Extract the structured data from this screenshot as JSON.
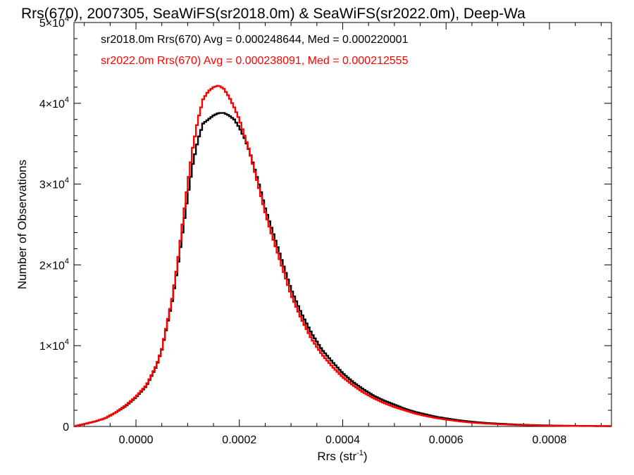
{
  "chart_data": {
    "type": "line",
    "title": "Rrs(670), 2007305, SeaWiFS(sr2018.0m) & SeaWiFS(sr2022.0m), Deep-Wa",
    "xlabel": "Rrs (str",
    "xlabel_sup": "-1",
    "xlabel_end": ")",
    "ylabel": "Number of Observations",
    "xlim": [
      -0.00012,
      0.00092
    ],
    "ylim": [
      0,
      50000
    ],
    "x_ticks": [
      {
        "value": 0.0,
        "label": "0.0000"
      },
      {
        "value": 0.0002,
        "label": "0.0002"
      },
      {
        "value": 0.0004,
        "label": "0.0004"
      },
      {
        "value": 0.0006,
        "label": "0.0006"
      },
      {
        "value": 0.0008,
        "label": "0.0008"
      }
    ],
    "y_ticks": [
      {
        "value": 0,
        "mant": "0",
        "sup": ""
      },
      {
        "value": 10000,
        "mant": "1×10",
        "sup": "4"
      },
      {
        "value": 20000,
        "mant": "2×10",
        "sup": "4"
      },
      {
        "value": 30000,
        "mant": "3×10",
        "sup": "4"
      },
      {
        "value": 40000,
        "mant": "4×10",
        "sup": "4"
      },
      {
        "value": 50000,
        "mant": "5×10",
        "sup": "4"
      }
    ],
    "legend_placement": "top-left",
    "series": [
      {
        "name": "sr2018.0m",
        "color": "#000000",
        "annotation": "sr2018.0m Rrs(670) Avg = 0.000248644, Med = 0.000220001",
        "x": [
          -0.00012,
          -0.0001,
          -8e-05,
          -6e-05,
          -4e-05,
          -2e-05,
          0.0,
          2e-05,
          4e-05,
          5e-05,
          6e-05,
          7e-05,
          8e-05,
          9e-05,
          0.0001,
          0.00011,
          0.00012,
          0.00013,
          0.00014,
          0.00015,
          0.00016,
          0.00017,
          0.00018,
          0.00019,
          0.0002,
          0.00021,
          0.00022,
          0.00023,
          0.00024,
          0.00025,
          0.00026,
          0.00027,
          0.00028,
          0.00029,
          0.0003,
          0.00032,
          0.00034,
          0.00036,
          0.00038,
          0.0004,
          0.00042,
          0.00044,
          0.00046,
          0.00048,
          0.0005,
          0.00052,
          0.00054,
          0.00056,
          0.00058,
          0.0006,
          0.00062,
          0.00064,
          0.00066,
          0.00068,
          0.0007,
          0.00074,
          0.00078,
          0.00082,
          0.00086,
          0.0009,
          0.00092
        ],
        "y": [
          0,
          300,
          600,
          1000,
          1700,
          2500,
          3600,
          5000,
          7500,
          9500,
          12500,
          15500,
          19500,
          24000,
          28500,
          32500,
          35500,
          37500,
          38000,
          38500,
          38800,
          38800,
          38500,
          38000,
          37000,
          35700,
          34000,
          31800,
          29500,
          27000,
          25000,
          23000,
          21000,
          19000,
          17000,
          14000,
          11500,
          9500,
          8000,
          6600,
          5500,
          4600,
          3800,
          3200,
          2700,
          2200,
          1800,
          1500,
          1200,
          1000,
          800,
          650,
          520,
          420,
          350,
          220,
          150,
          100,
          70,
          50,
          40
        ]
      },
      {
        "name": "sr2022.0m",
        "color": "#ff0000",
        "annotation": "sr2022.0m Rrs(670) Avg = 0.000238091, Med = 0.000212555",
        "x": [
          -0.00012,
          -0.0001,
          -8e-05,
          -6e-05,
          -4e-05,
          -2e-05,
          0.0,
          2e-05,
          4e-05,
          5e-05,
          6e-05,
          7e-05,
          8e-05,
          9e-05,
          0.0001,
          0.00011,
          0.00012,
          0.00013,
          0.00014,
          0.00015,
          0.00016,
          0.00017,
          0.00018,
          0.00019,
          0.0002,
          0.00021,
          0.00022,
          0.00023,
          0.00024,
          0.00025,
          0.00026,
          0.00027,
          0.00028,
          0.00029,
          0.0003,
          0.00032,
          0.00034,
          0.00036,
          0.00038,
          0.0004,
          0.00042,
          0.00044,
          0.00046,
          0.00048,
          0.0005,
          0.00052,
          0.00054,
          0.00056,
          0.00058,
          0.0006,
          0.00062,
          0.00064,
          0.00066,
          0.00068,
          0.0007,
          0.00074,
          0.00078,
          0.00082,
          0.00086,
          0.0009,
          0.00092
        ],
        "y": [
          0,
          300,
          600,
          1000,
          1700,
          2600,
          3700,
          5100,
          7600,
          9600,
          12700,
          15800,
          20000,
          25000,
          30000,
          34500,
          38000,
          40500,
          41500,
          42000,
          42200,
          41800,
          40800,
          39500,
          38000,
          36000,
          34000,
          31500,
          29000,
          26500,
          24300,
          22300,
          20300,
          18300,
          16300,
          13300,
          10800,
          8900,
          7400,
          6100,
          5100,
          4200,
          3500,
          2900,
          2400,
          2000,
          1600,
          1300,
          1050,
          850,
          680,
          540,
          430,
          350,
          280,
          180,
          120,
          80,
          55,
          40,
          30
        ]
      }
    ]
  }
}
